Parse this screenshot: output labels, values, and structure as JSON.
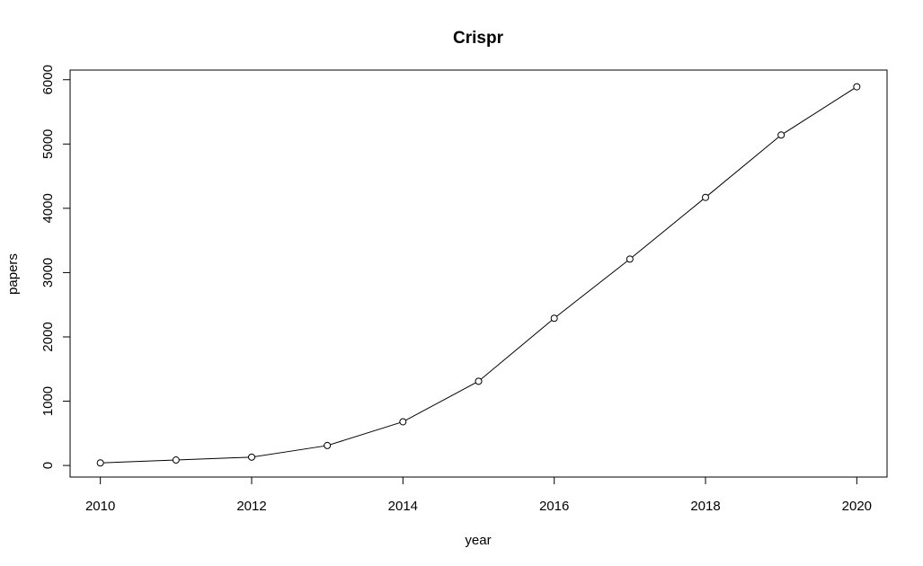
{
  "chart_data": {
    "type": "line",
    "title": "Crispr",
    "xlabel": "year",
    "ylabel": "papers",
    "x": [
      2010,
      2011,
      2012,
      2013,
      2014,
      2015,
      2016,
      2017,
      2018,
      2019,
      2020
    ],
    "series": [
      {
        "values": [
          40,
          85,
          130,
          310,
          680,
          1310,
          2290,
          3210,
          4170,
          5140,
          5890
        ]
      }
    ],
    "xlim": [
      2009.6,
      2020.4
    ],
    "ylim": [
      -180,
      6150
    ],
    "xticks": [
      2010,
      2012,
      2014,
      2016,
      2018,
      2020
    ],
    "yticks": [
      0,
      1000,
      2000,
      3000,
      4000,
      5000,
      6000
    ],
    "xtick_labels": [
      "2010",
      "2012",
      "2014",
      "2016",
      "2018",
      "2020"
    ],
    "ytick_labels": [
      "0",
      "1000",
      "2000",
      "3000",
      "4000",
      "5000",
      "6000"
    ],
    "markers": "open-circle",
    "grid": false,
    "legend": "none",
    "colors": {
      "line": "#000000",
      "marker_fill": "#ffffff"
    }
  }
}
